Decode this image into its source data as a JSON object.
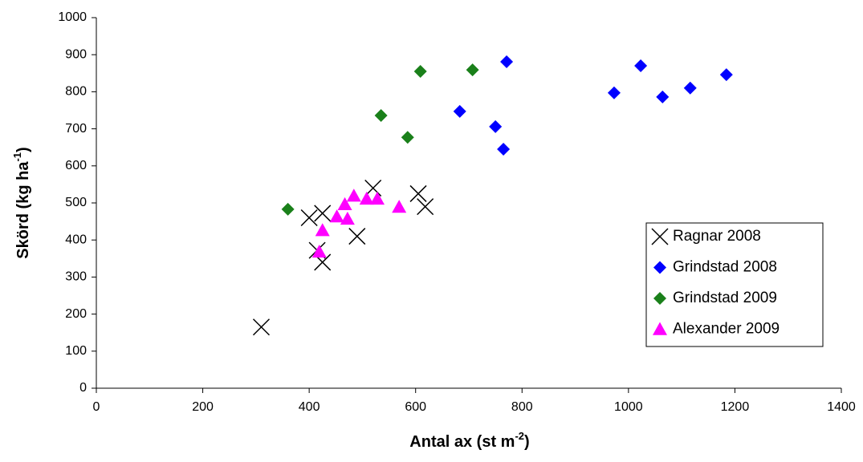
{
  "chart_data": {
    "type": "scatter",
    "xlabel": {
      "text": "Antal ax (st m",
      "superscript": "-2",
      "suffix": ")"
    },
    "ylabel": {
      "text": "Skörd (kg ha",
      "superscript": "-1",
      "suffix": ")"
    },
    "xlim": [
      0,
      1400
    ],
    "xticks": [
      0,
      200,
      400,
      600,
      800,
      1000,
      1200,
      1400
    ],
    "ylim": [
      0,
      1000
    ],
    "yticks": [
      0,
      100,
      200,
      300,
      400,
      500,
      600,
      700,
      800,
      900,
      1000
    ],
    "grid": false,
    "legend": "right",
    "series": [
      {
        "name": "Ragnar 2008",
        "color": "#000000",
        "marker": "x",
        "x": [
          310,
          400,
          425,
          415,
          425,
          490,
          520,
          605,
          618
        ],
        "values": [
          165,
          460,
          472,
          372,
          340,
          410,
          540,
          525,
          490
        ]
      },
      {
        "name": "Grindstad 2008",
        "color": "#0000ff",
        "marker": "diamond",
        "x": [
          683,
          750,
          765,
          771,
          973,
          1023,
          1064,
          1116,
          1184
        ],
        "values": [
          747,
          706,
          645,
          881,
          797,
          870,
          786,
          810,
          846
        ]
      },
      {
        "name": "Grindstad 2009",
        "color": "#1a801a",
        "marker": "diamond",
        "x": [
          360,
          535,
          585,
          609,
          707
        ],
        "values": [
          483,
          736,
          677,
          855,
          859
        ]
      },
      {
        "name": "Alexander 2009",
        "color": "#ff00ff",
        "marker": "triangle",
        "x": [
          419,
          425,
          452,
          467,
          472,
          484,
          508,
          528,
          569
        ],
        "values": [
          368,
          426,
          463,
          496,
          457,
          519,
          511,
          511,
          489
        ]
      }
    ]
  }
}
